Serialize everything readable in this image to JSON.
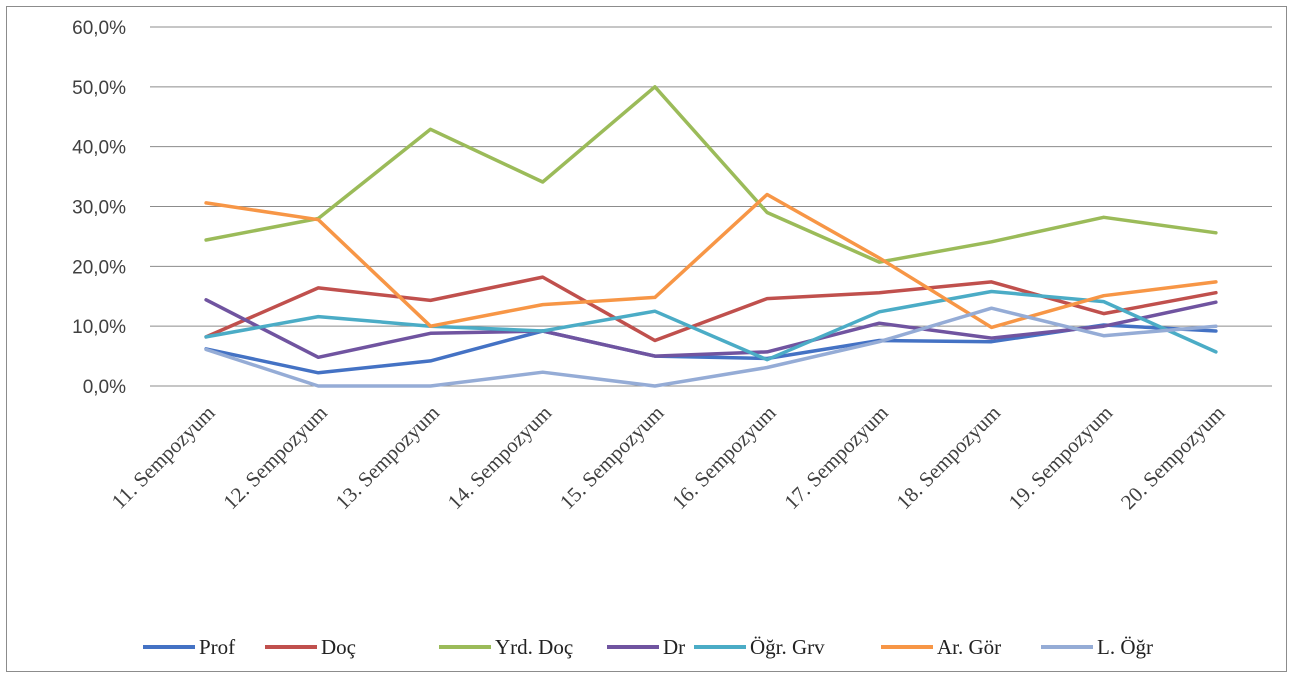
{
  "chart_data": {
    "type": "line",
    "title": "",
    "xlabel": "",
    "ylabel": "",
    "ylim": [
      0,
      60
    ],
    "y_ticks": [
      "0,0%",
      "10,0%",
      "20,0%",
      "30,0%",
      "40,0%",
      "50,0%",
      "60,0%"
    ],
    "grid": true,
    "legend_position": "bottom",
    "categories": [
      "11. Sempozyum",
      "12. Sempozyum",
      "13. Sempozyum",
      "14. Sempozyum",
      "15. Sempozyum",
      "16. Sempozyum",
      "17. Sempozyum",
      "18. Sempozyum",
      "19. Sempozyum",
      "20. Sempozyum"
    ],
    "series": [
      {
        "name": "Prof",
        "color": "#4472c4",
        "values": [
          6.2,
          2.2,
          4.2,
          9.2,
          5.0,
          4.6,
          7.6,
          7.4,
          10.2,
          9.2
        ]
      },
      {
        "name": "Doç",
        "color": "#c0504d",
        "values": [
          8.2,
          16.4,
          14.3,
          18.2,
          7.6,
          14.6,
          15.6,
          17.4,
          12.1,
          15.6
        ]
      },
      {
        "name": "Yrd. Doç",
        "color": "#9bbb59",
        "values": [
          24.4,
          28.0,
          42.9,
          34.1,
          50.0,
          29.0,
          20.7,
          24.1,
          28.2,
          25.6
        ]
      },
      {
        "name": "Dr",
        "color": "#7054a0",
        "values": [
          14.4,
          4.8,
          8.8,
          9.2,
          5.0,
          5.7,
          10.5,
          8.0,
          10.0,
          14.0
        ]
      },
      {
        "name": "Öğr. Grv",
        "color": "#4bacc6",
        "values": [
          8.2,
          11.6,
          10.0,
          9.2,
          12.5,
          4.4,
          12.4,
          15.8,
          14.1,
          5.7
        ]
      },
      {
        "name": "Ar. Gör",
        "color": "#f79646",
        "values": [
          30.6,
          27.8,
          10.0,
          13.6,
          14.8,
          32.0,
          21.4,
          9.8,
          15.1,
          17.4
        ]
      },
      {
        "name": "L. Öğr",
        "color": "#95acd6",
        "values": [
          6.1,
          0.0,
          0.0,
          2.3,
          0.0,
          3.1,
          7.4,
          13.0,
          8.4,
          10.0
        ]
      }
    ]
  }
}
